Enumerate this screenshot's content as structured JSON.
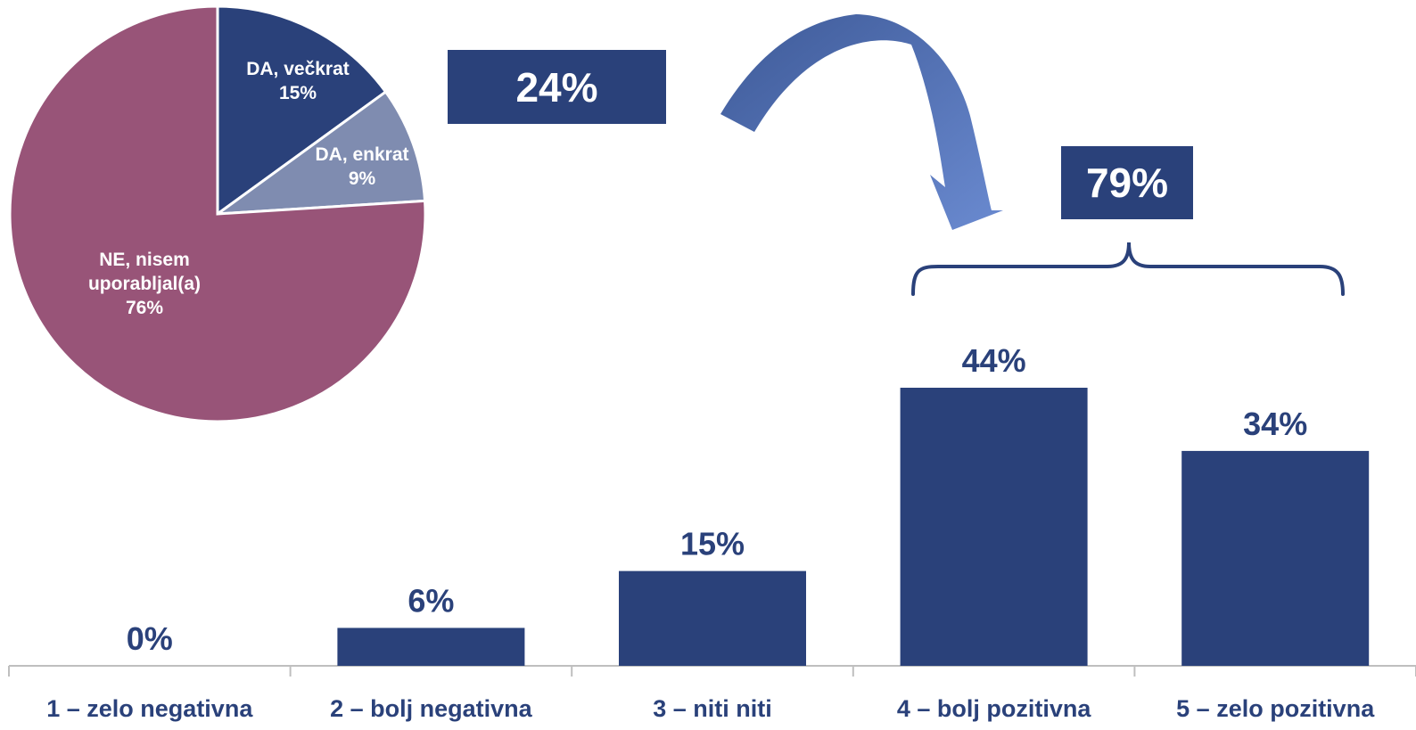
{
  "callouts": {
    "pie_share": "24%",
    "positive_share": "79%"
  },
  "colors": {
    "navy": "#2a417a",
    "steel": "#7f8cb0",
    "plum": "#985478",
    "arrow_light": "#6a8ad0",
    "arrow_dark": "#3e5a98",
    "axis": "#bfbfbf"
  },
  "chart_data": [
    {
      "type": "pie",
      "slices": [
        {
          "name": "DA, večkrat",
          "value": 15,
          "label_value": "15%",
          "color": "#2a417a"
        },
        {
          "name": "DA, enkrat",
          "value": 9,
          "label_value": "9%",
          "color": "#7f8cb0"
        },
        {
          "name": "NE, nisem uporabljal(a)",
          "label_lines": [
            "NE, nisem",
            "uporabljal(a)"
          ],
          "value": 76,
          "label_value": "76%",
          "color": "#985478"
        }
      ]
    },
    {
      "type": "bar",
      "categories": [
        "1 – zelo negativna",
        "2 – bolj negativna",
        "3 – niti niti",
        "4 – bolj pozitivna",
        "5 – zelo pozitivna"
      ],
      "values": [
        0,
        6,
        15,
        44,
        34
      ],
      "labels": [
        "0%",
        "6%",
        "15%",
        "44%",
        "34%"
      ],
      "ylim": [
        0,
        50
      ],
      "color": "#2a417a",
      "grid": false
    }
  ]
}
